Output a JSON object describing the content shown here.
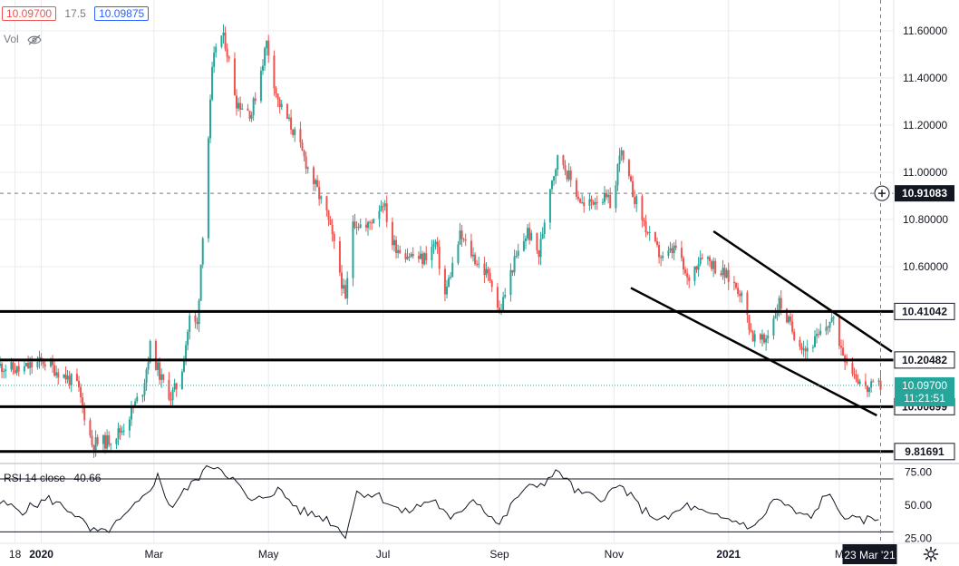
{
  "header": {
    "bid": "10.09700",
    "spread": "17.5",
    "ask": "10.09875",
    "vol_label": "Vol"
  },
  "rsi_label": {
    "name": "RSI 14 close",
    "value": "40.66"
  },
  "colors": {
    "up": "#26a69a",
    "down": "#ef5350",
    "line": "#000000",
    "grid": "#e9ebef",
    "rsi": "#131722",
    "price_label_bg": "#26a69a",
    "dark_label_bg": "#131722"
  },
  "chart_data": [
    {
      "type": "candlestick",
      "title": "",
      "x_range": [
        "2019-12-10",
        "2021-03-30"
      ],
      "ylim": [
        9.77,
        11.73
      ],
      "y_ticks": [
        "11.60000",
        "11.40000",
        "11.20000",
        "11.00000",
        "10.80000",
        "10.60000"
      ],
      "x_ticks": [
        "18",
        "2020",
        "Mar",
        "May",
        "Jul",
        "Sep",
        "Nov",
        "2021",
        "M"
      ],
      "x_tick_dates": [
        "2019-12-18",
        "2020-01-01",
        "2020-03-01",
        "2020-05-01",
        "2020-07-01",
        "2020-09-01",
        "2020-11-01",
        "2021-01-01",
        "2021-03-01"
      ],
      "close_path": [
        [
          "2019-12-10",
          10.18
        ],
        [
          "2019-12-20",
          10.16
        ],
        [
          "2020-01-02",
          10.2
        ],
        [
          "2020-01-20",
          10.1
        ],
        [
          "2020-01-28",
          9.85
        ],
        [
          "2020-02-05",
          9.86
        ],
        [
          "2020-02-13",
          9.91
        ],
        [
          "2020-02-24",
          10.08
        ],
        [
          "2020-02-28",
          10.26
        ],
        [
          "2020-03-05",
          10.12
        ],
        [
          "2020-03-10",
          10.05
        ],
        [
          "2020-03-15",
          10.12
        ],
        [
          "2020-03-20",
          10.38
        ],
        [
          "2020-03-24",
          10.35
        ],
        [
          "2020-03-28",
          10.88
        ],
        [
          "2020-04-01",
          11.42
        ],
        [
          "2020-04-04",
          11.6
        ],
        [
          "2020-04-08",
          11.55
        ],
        [
          "2020-04-14",
          11.3
        ],
        [
          "2020-04-22",
          11.25
        ],
        [
          "2020-04-30",
          11.55
        ],
        [
          "2020-05-06",
          11.3
        ],
        [
          "2020-05-14",
          11.18
        ],
        [
          "2020-05-24",
          10.98
        ],
        [
          "2020-06-01",
          10.82
        ],
        [
          "2020-06-07",
          10.62
        ],
        [
          "2020-06-11",
          10.45
        ],
        [
          "2020-06-15",
          10.8
        ],
        [
          "2020-06-22",
          10.76
        ],
        [
          "2020-07-01",
          10.88
        ],
        [
          "2020-07-06",
          10.7
        ],
        [
          "2020-07-12",
          10.66
        ],
        [
          "2020-07-22",
          10.63
        ],
        [
          "2020-07-29",
          10.7
        ],
        [
          "2020-08-03",
          10.48
        ],
        [
          "2020-08-11",
          10.73
        ],
        [
          "2020-08-20",
          10.62
        ],
        [
          "2020-08-28",
          10.54
        ],
        [
          "2020-09-01",
          10.4
        ],
        [
          "2020-09-08",
          10.6
        ],
        [
          "2020-09-16",
          10.75
        ],
        [
          "2020-09-22",
          10.65
        ],
        [
          "2020-09-28",
          10.95
        ],
        [
          "2020-10-03",
          11.08
        ],
        [
          "2020-10-08",
          10.98
        ],
        [
          "2020-10-16",
          10.85
        ],
        [
          "2020-10-24",
          10.9
        ],
        [
          "2020-11-01",
          10.86
        ],
        [
          "2020-11-04",
          11.1
        ],
        [
          "2020-11-08",
          10.98
        ],
        [
          "2020-11-14",
          10.85
        ],
        [
          "2020-11-20",
          10.72
        ],
        [
          "2020-11-27",
          10.63
        ],
        [
          "2020-12-04",
          10.68
        ],
        [
          "2020-12-10",
          10.54
        ],
        [
          "2020-12-18",
          10.66
        ],
        [
          "2020-12-25",
          10.6
        ],
        [
          "2021-01-01",
          10.55
        ],
        [
          "2021-01-07",
          10.5
        ],
        [
          "2021-01-14",
          10.3
        ],
        [
          "2021-01-20",
          10.28
        ],
        [
          "2021-01-28",
          10.45
        ],
        [
          "2021-02-04",
          10.33
        ],
        [
          "2021-02-11",
          10.25
        ],
        [
          "2021-02-18",
          10.3
        ],
        [
          "2021-02-25",
          10.38
        ],
        [
          "2021-03-03",
          10.24
        ],
        [
          "2021-03-09",
          10.15
        ],
        [
          "2021-03-15",
          10.08
        ],
        [
          "2021-03-23",
          10.097
        ]
      ]
    },
    {
      "type": "line",
      "title": "",
      "ylim": [
        22,
        81
      ],
      "y_ticks": [
        "75.00",
        "50.00",
        "25.00"
      ],
      "guides": [
        30,
        70
      ],
      "series": [
        {
          "values": [
            [
              "2019-12-10",
              52
            ],
            [
              "2019-12-22",
              46
            ],
            [
              "2020-01-05",
              55
            ],
            [
              "2020-01-18",
              45
            ],
            [
              "2020-01-27",
              31
            ],
            [
              "2020-02-03",
              29
            ],
            [
              "2020-02-12",
              38
            ],
            [
              "2020-02-24",
              55
            ],
            [
              "2020-03-03",
              72
            ],
            [
              "2020-03-10",
              48
            ],
            [
              "2020-03-18",
              62
            ],
            [
              "2020-03-24",
              70
            ],
            [
              "2020-03-29",
              80
            ],
            [
              "2020-04-04",
              80
            ],
            [
              "2020-04-12",
              70
            ],
            [
              "2020-04-22",
              52
            ],
            [
              "2020-05-06",
              62
            ],
            [
              "2020-05-18",
              46
            ],
            [
              "2020-06-01",
              40
            ],
            [
              "2020-06-11",
              28
            ],
            [
              "2020-06-17",
              60
            ],
            [
              "2020-06-28",
              58
            ],
            [
              "2020-07-12",
              44
            ],
            [
              "2020-07-28",
              55
            ],
            [
              "2020-08-06",
              38
            ],
            [
              "2020-08-18",
              56
            ],
            [
              "2020-09-01",
              35
            ],
            [
              "2020-09-12",
              60
            ],
            [
              "2020-09-25",
              68
            ],
            [
              "2020-10-03",
              76
            ],
            [
              "2020-10-12",
              60
            ],
            [
              "2020-10-24",
              55
            ],
            [
              "2020-11-05",
              65
            ],
            [
              "2020-11-15",
              48
            ],
            [
              "2020-11-27",
              38
            ],
            [
              "2020-12-10",
              50
            ],
            [
              "2020-12-22",
              42
            ],
            [
              "2021-01-05",
              38
            ],
            [
              "2021-01-15",
              33
            ],
            [
              "2021-01-26",
              56
            ],
            [
              "2021-02-05",
              45
            ],
            [
              "2021-02-14",
              40
            ],
            [
              "2021-02-22",
              60
            ],
            [
              "2021-03-01",
              45
            ],
            [
              "2021-03-10",
              38
            ],
            [
              "2021-03-23",
              40.66
            ]
          ]
        }
      ]
    }
  ],
  "horizontal_levels": [
    {
      "value": 10.41042,
      "label": "10.41042"
    },
    {
      "value": 10.20482,
      "label": "10.20482"
    },
    {
      "value": 10.00699,
      "label": "10.00699"
    },
    {
      "value": 9.81691,
      "label": "9.81691"
    }
  ],
  "crosshair": {
    "price": 10.91083,
    "price_label": "10.91083",
    "date": "2021-03-23",
    "date_label": "23 Mar '21"
  },
  "last_price": {
    "value": 10.097,
    "label": "10.09700",
    "countdown": "11:21:51"
  },
  "channel": {
    "upper": [
      [
        "2020-12-24",
        10.75
      ],
      [
        "2021-03-29",
        10.24
      ]
    ],
    "lower": [
      [
        "2020-11-10",
        10.51
      ],
      [
        "2021-03-21",
        9.97
      ]
    ]
  }
}
